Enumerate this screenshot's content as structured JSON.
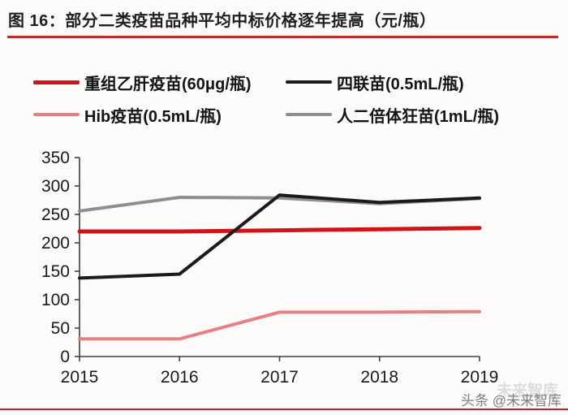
{
  "header": {
    "title": "图 16：部分二类疫苗品种平均中标价格逐年提高（元/瓶）"
  },
  "chart_data": {
    "type": "line",
    "title": "部分二类疫苗品种平均中标价格逐年提高",
    "unit": "元/瓶",
    "categories": [
      "2015",
      "2016",
      "2017",
      "2018",
      "2019"
    ],
    "series": [
      {
        "name": "重组乙肝疫苗(60μg/瓶)",
        "color": "#cf1418",
        "line_width": 5,
        "z": 2,
        "values": [
          220,
          220,
          222,
          224,
          226
        ]
      },
      {
        "name": "四联苗(0.5mL/瓶)",
        "color": "#1b1b1b",
        "line_width": 4,
        "z": 3,
        "values": [
          138,
          145,
          284,
          271,
          279
        ]
      },
      {
        "name": "Hib疫苗(0.5mL/瓶)",
        "color": "#e87f84",
        "line_width": 4,
        "z": 1,
        "values": [
          31,
          31,
          78,
          78,
          79
        ]
      },
      {
        "name": "人二倍体狂苗(1mL/瓶)",
        "color": "#8e8e8e",
        "line_width": 4,
        "z": 0,
        "values": [
          256,
          280,
          279,
          269,
          278
        ]
      }
    ],
    "ylim": [
      0,
      350
    ],
    "yticks": [
      0,
      50,
      100,
      150,
      200,
      250,
      300,
      350
    ],
    "xlabel": "",
    "ylabel": "",
    "grid": false,
    "legend_position": "top-left"
  },
  "watermark": {
    "text": "头条 @未来智库",
    "ghost_text": "未来智库"
  },
  "colors": {
    "accent_red": "#bf2b2e",
    "axis": "#404040",
    "tick_text": "#1a1a1a"
  }
}
